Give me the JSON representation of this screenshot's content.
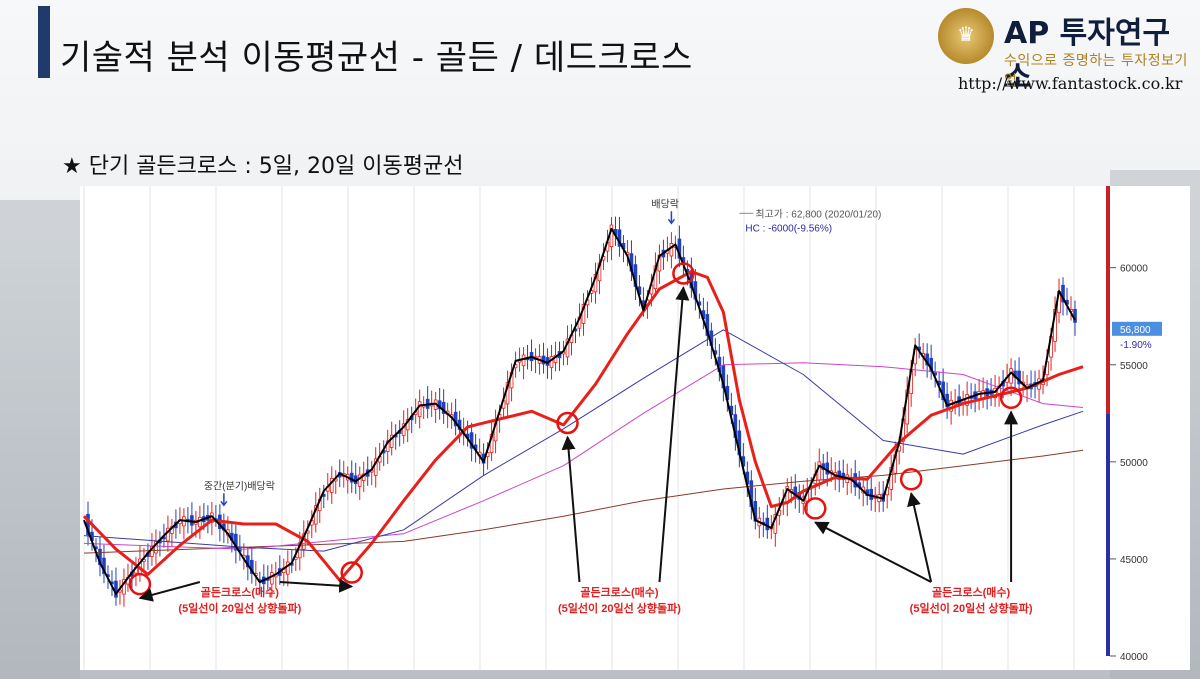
{
  "header": {
    "title": "기술적 분석 이동평균선 - 골든 / 데드크로스",
    "subtitle": "★ 단기 골든크로스 : 5일, 20일 이동평균선"
  },
  "logo": {
    "name": "AP 투자연구소",
    "tagline": "수익으로 증명하는 투자정보기업",
    "url": "http://www.fantastock.co.kr",
    "emblem_icon": "crown-icon"
  },
  "colors": {
    "title_bar": "#1f3a6b",
    "ma5": "#000000",
    "ma20": "#e8201a",
    "ma60": "#3a3aa8",
    "ma120": "#cc44cc",
    "ma240": "#8a3a2a",
    "candle_up": "#e02020",
    "candle_down": "#2040c0",
    "annotation": "#e02020",
    "marker": "#e81010"
  },
  "chart_data": {
    "type": "line",
    "ylim": [
      40000,
      64000
    ],
    "y_ticks": [
      40000,
      45000,
      50000,
      55000,
      60000
    ],
    "grid": true,
    "current_price": {
      "label": "56,800",
      "change": "-1.90%",
      "value": 56800
    },
    "high_note": {
      "text": "최고가 : 62,800 (2020/01/20)",
      "value": 62800,
      "x": 163
    },
    "hc_note": {
      "text": "HC : -6000(-9.56%)"
    },
    "annotations": [
      {
        "text": "중간(분기)배당락",
        "x": 35
      },
      {
        "text": "배당락",
        "x": 147
      }
    ],
    "series": [
      {
        "key": "ma5",
        "x": [
          0,
          4,
          8,
          12,
          16,
          20,
          24,
          28,
          32,
          36,
          40,
          44,
          48,
          52,
          56,
          60,
          64,
          68,
          72,
          76,
          80,
          84,
          88,
          92,
          96,
          100,
          104,
          108,
          112,
          116,
          120,
          124,
          128,
          132,
          136,
          140,
          144,
          148,
          152,
          156,
          160,
          164,
          168,
          172,
          176,
          180,
          184,
          188,
          192,
          196,
          200,
          204,
          208,
          212,
          216,
          220,
          224,
          228,
          232,
          236,
          240,
          244,
          248
        ],
        "values": [
          47000,
          44800,
          43200,
          44300,
          45300,
          46200,
          47000,
          46900,
          47200,
          46300,
          45000,
          43800,
          44200,
          44800,
          46600,
          48500,
          49400,
          49000,
          49600,
          51000,
          51800,
          52900,
          53000,
          52300,
          51200,
          50000,
          52600,
          55200,
          55400,
          55100,
          55700,
          57400,
          59500,
          62000,
          60600,
          57800,
          60600,
          61200,
          59100,
          56700,
          54000,
          50500,
          47000,
          46600,
          48600,
          48000,
          49800,
          49300,
          49100,
          48300,
          48100,
          51000,
          56000,
          54800,
          52900,
          53200,
          53500,
          53600,
          54600,
          53800,
          54200,
          58800,
          57300
        ]
      },
      {
        "key": "ma20",
        "x": [
          0,
          8,
          16,
          24,
          32,
          40,
          48,
          56,
          64,
          72,
          80,
          88,
          96,
          104,
          112,
          120,
          128,
          136,
          144,
          152,
          156,
          160,
          164,
          168,
          172,
          176,
          180,
          188,
          196,
          204,
          212,
          220,
          228,
          236,
          244,
          250
        ],
        "values": [
          47200,
          45500,
          44200,
          45700,
          47000,
          46800,
          46800,
          45900,
          43900,
          45800,
          48000,
          50100,
          51800,
          52200,
          52600,
          51900,
          54000,
          56600,
          58900,
          59800,
          59500,
          57700,
          53200,
          50000,
          47700,
          47900,
          48500,
          49200,
          49100,
          51000,
          52400,
          53000,
          53400,
          53800,
          54500,
          54900
        ]
      },
      {
        "key": "ma60",
        "x": [
          0,
          40,
          60,
          80,
          100,
          120,
          140,
          160,
          180,
          200,
          220,
          240,
          250
        ],
        "values": [
          46200,
          45600,
          45400,
          46500,
          49300,
          51700,
          54300,
          56800,
          54500,
          51100,
          50400,
          51900,
          52600
        ]
      },
      {
        "key": "ma120",
        "x": [
          0,
          40,
          80,
          100,
          120,
          140,
          160,
          180,
          200,
          220,
          240,
          250
        ],
        "values": [
          45800,
          45500,
          46300,
          48000,
          49800,
          52500,
          55000,
          55100,
          54900,
          54500,
          53000,
          52800
        ]
      },
      {
        "key": "ma240",
        "x": [
          0,
          40,
          80,
          100,
          120,
          140,
          160,
          180,
          200,
          220,
          240,
          250
        ],
        "values": [
          45300,
          45600,
          45900,
          46500,
          47200,
          48000,
          48600,
          49000,
          49300,
          49800,
          50300,
          50600
        ]
      }
    ],
    "crosses": [
      {
        "x": 14,
        "y": 43700
      },
      {
        "x": 67,
        "y": 44300
      },
      {
        "x": 121,
        "y": 52000
      },
      {
        "x": 150,
        "y": 59700
      },
      {
        "x": 183,
        "y": 47600
      },
      {
        "x": 207,
        "y": 49100
      },
      {
        "x": 232,
        "y": 53300
      }
    ],
    "callouts": [
      {
        "line1": "골든크로스(매수)",
        "line2": "(5일선이 20일선 상향돌파)",
        "x": 39,
        "arrows": [
          14,
          67
        ]
      },
      {
        "line1": "골든크로스(매수)",
        "line2": "(5일선이 20일선 상향돌파)",
        "x": 134,
        "arrows": [
          121,
          150
        ]
      },
      {
        "line1": "골든크로스(매수)",
        "line2": "(5일선이 20일선 상향돌파)",
        "x": 222,
        "arrows": [
          183,
          207,
          232
        ]
      }
    ]
  }
}
